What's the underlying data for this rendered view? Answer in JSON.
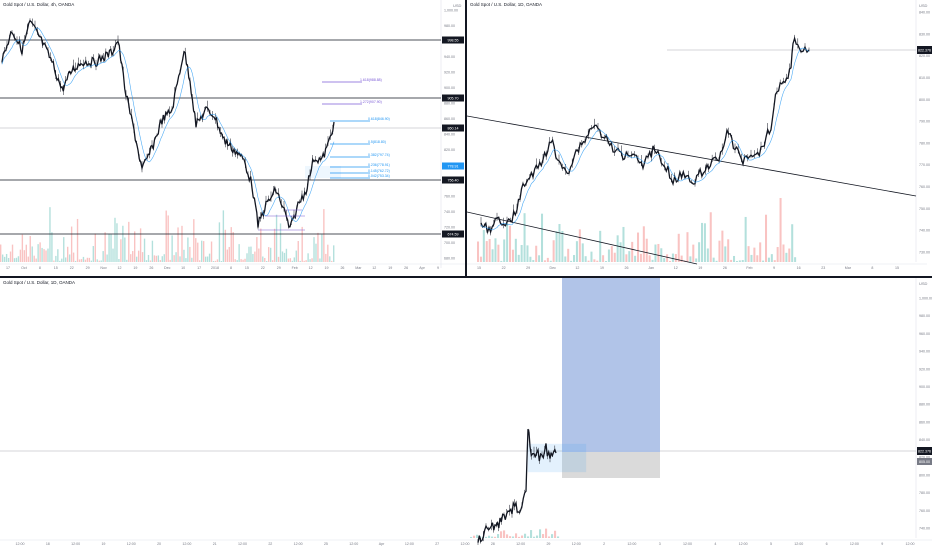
{
  "panels": {
    "top_left": {
      "legend": "Gold Spot / U.S. Dollar, 4h, OANDA",
      "corner": "USD",
      "price_ticks": [
        "1,000.00",
        "980.00",
        "960.00",
        "940.00",
        "920.00",
        "900.00",
        "880.00",
        "860.00",
        "840.00",
        "820.00",
        "800.00",
        "780.00",
        "760.00",
        "740.00",
        "720.00",
        "700.00",
        "680.00"
      ],
      "date_ticks": [
        "17",
        "Oct",
        "8",
        "15",
        "22",
        "29",
        "Nov",
        "12",
        "19",
        "26",
        "Dec",
        "10",
        "17",
        "2018",
        "8",
        "15",
        "22",
        "29",
        "Feb",
        "12",
        "19",
        "26",
        "Mar",
        "12",
        "19",
        "26",
        "Apr",
        "9"
      ],
      "fib_labels": [
        {
          "text": "1.618(988.88)",
          "color": "#7b5bd6"
        },
        {
          "text": "1.272(907.90)",
          "color": "#7b5bd6"
        },
        {
          "text": "0.618(846.90)",
          "color": "#2196f3"
        },
        {
          "text": "0.5(818.80)",
          "color": "#2196f3"
        },
        {
          "text": "0.382(797.74)",
          "color": "#2196f3"
        },
        {
          "text": "0.236(778.91)",
          "color": "#2196f3"
        },
        {
          "text": "0.145(762.72)",
          "color": "#2196f3"
        },
        {
          "text": "0.042(753.34)",
          "color": "#2196f3"
        }
      ],
      "level_badges": [
        {
          "text": "998.55",
          "color": "#131722"
        },
        {
          "text": "905.70",
          "color": "#131722"
        },
        {
          "text": "860.14",
          "color": "#131722"
        },
        {
          "text": "778.91",
          "color": "#2196f3"
        },
        {
          "text": "756.40",
          "color": "#131722"
        },
        {
          "text": "674.59",
          "color": "#131722"
        }
      ]
    },
    "top_right": {
      "legend": "Gold Spot / U.S. Dollar, 1D, OANDA",
      "corner": "USD",
      "price_ticks": [
        "840.00",
        "830.00",
        "820.00",
        "810.00",
        "800.00",
        "790.00",
        "780.00",
        "770.00",
        "760.00",
        "750.00",
        "740.00",
        "730.00"
      ],
      "date_ticks": [
        "15",
        "22",
        "29",
        "Dec",
        "12",
        "19",
        "26",
        "Jan",
        "12",
        "19",
        "26",
        "Feb",
        "9",
        "16",
        "23",
        "Mar",
        "8",
        "15"
      ],
      "last_price": "822.376"
    },
    "bottom": {
      "legend": "Gold Spot / U.S. Dollar, 1D, OANDA",
      "corner": "USD",
      "price_ticks": [
        "1,000.00",
        "980.00",
        "960.00",
        "940.00",
        "920.00",
        "900.00",
        "880.00",
        "860.00",
        "840.00",
        "820.00",
        "800.00",
        "780.00",
        "760.00",
        "740.00"
      ],
      "date_ticks": [
        "12:00",
        "18",
        "12:00",
        "19",
        "12:00",
        "20",
        "12:00",
        "21",
        "12:00",
        "22",
        "12:00",
        "25",
        "12:00",
        "Apr",
        "12:00",
        "27",
        "12:00",
        "28",
        "12:00",
        "29",
        "12:00",
        "2",
        "12:00",
        "3",
        "12:00",
        "4",
        "12:00",
        "5",
        "12:00",
        "6",
        "12:00",
        "9",
        "12:00"
      ],
      "last_price": "822.376",
      "stop_price": "805.00"
    }
  },
  "colors": {
    "candle": "#131722",
    "ma": "#2196f3",
    "vol_up": "#26a69a",
    "vol_down": "#ef5350",
    "fib_upper": "#7b5bd6",
    "fib_lower": "#2196f3",
    "profit_zone": "#a8bee6",
    "loss_zone": "#d6d6d6"
  }
}
